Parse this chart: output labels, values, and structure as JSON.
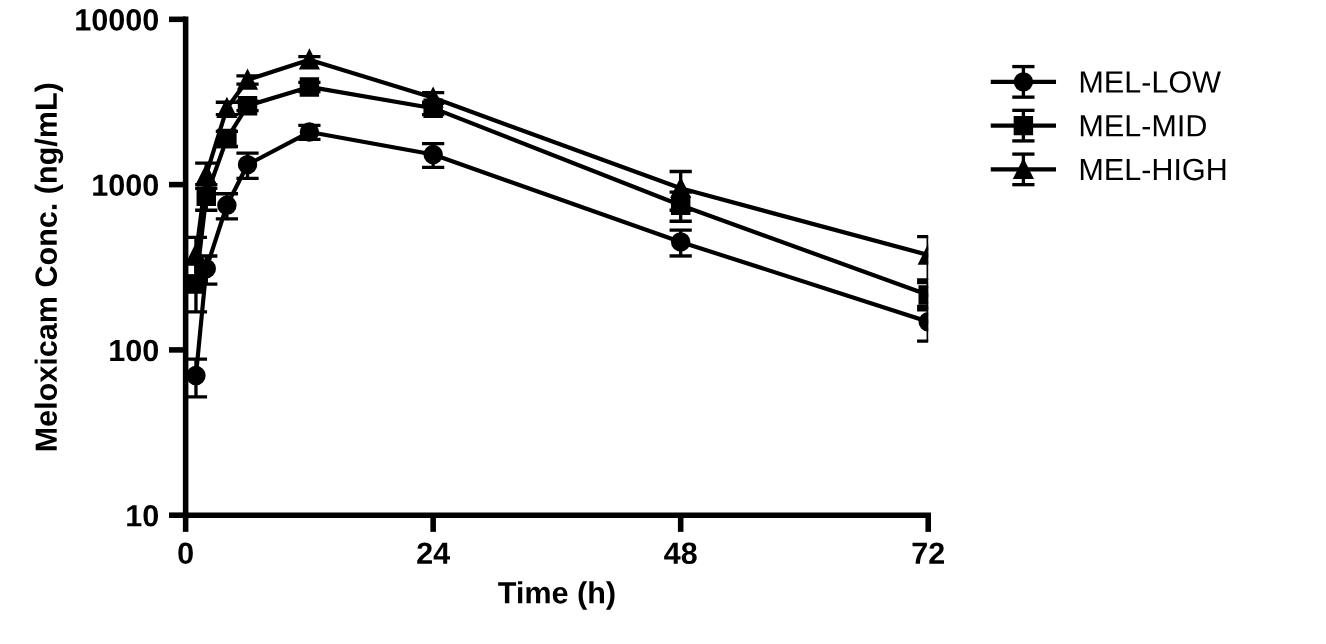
{
  "chart_data": {
    "type": "line",
    "xlabel": "Time (h)",
    "ylabel": "Meloxicam Conc. (ng/mL)",
    "x": [
      1,
      2,
      4,
      6,
      12,
      24,
      48,
      72
    ],
    "series": [
      {
        "name": "MEL-LOW",
        "color": "#000000",
        "marker": "circle",
        "values": [
          70,
          310,
          750,
          1320,
          2080,
          1520,
          450,
          148
        ],
        "errors": [
          18,
          60,
          130,
          230,
          200,
          250,
          80,
          35
        ]
      },
      {
        "name": "MEL-MID",
        "color": "#000000",
        "marker": "square",
        "values": [
          250,
          850,
          1900,
          3000,
          3900,
          2900,
          750,
          215
        ],
        "errors": [
          80,
          150,
          200,
          200,
          250,
          250,
          150,
          40
        ]
      },
      {
        "name": "MEL-HIGH",
        "color": "#000000",
        "marker": "triangle",
        "values": [
          380,
          1150,
          2900,
          4300,
          5700,
          3350,
          950,
          375
        ],
        "errors": [
          100,
          200,
          250,
          250,
          250,
          250,
          250,
          110
        ]
      }
    ],
    "log": true,
    "xlim": [
      0,
      72
    ],
    "xticks": [
      0,
      24,
      48,
      72
    ],
    "ylim": [
      10,
      10000
    ],
    "yticks": [
      10,
      100,
      1000,
      10000
    ],
    "grid": false,
    "legend": "right",
    "line_style": "solid"
  }
}
